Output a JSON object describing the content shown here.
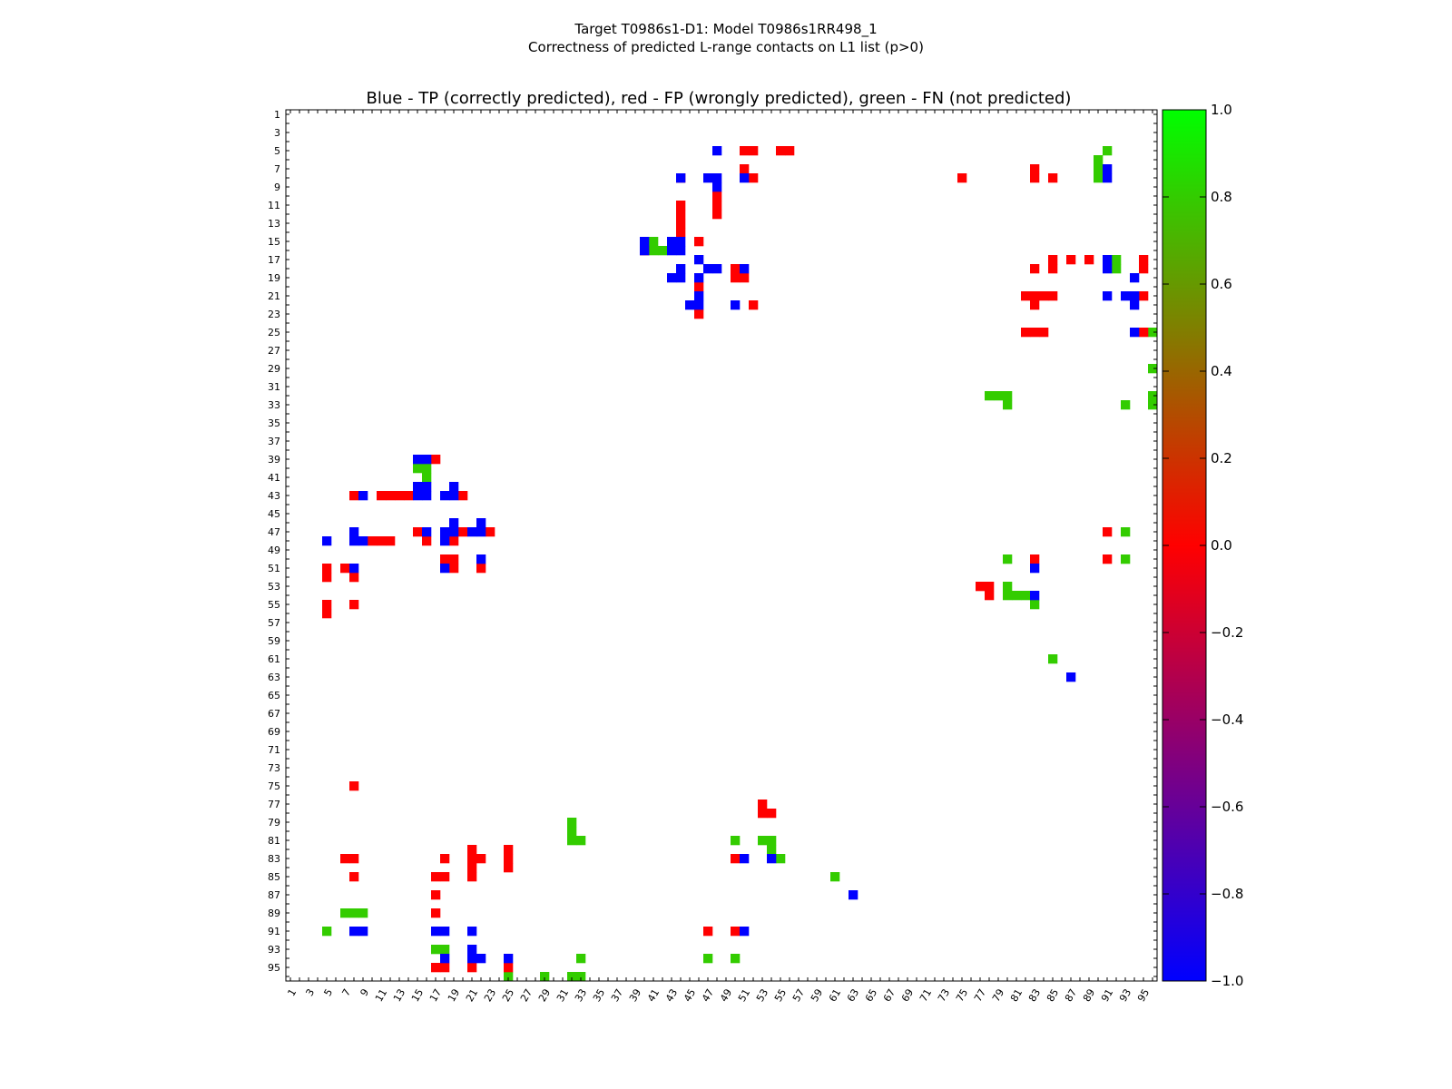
{
  "header": {
    "line1": "Target T0986s1-D1: Model T0986s1RR498_1",
    "line2": "Correctness of predicted L-range contacts on L1 list (p>0)"
  },
  "chart_data": {
    "type": "heatmap",
    "title": "Blue - TP (correctly predicted), red - FP (wrongly predicted), green - FN (not predicted)",
    "xlabel": "",
    "ylabel": "",
    "x_range": [
      1,
      96
    ],
    "y_range": [
      1,
      96
    ],
    "x_ticks": [
      "1",
      "3",
      "5",
      "7",
      "9",
      "11",
      "13",
      "15",
      "17",
      "19",
      "21",
      "23",
      "25",
      "27",
      "29",
      "31",
      "33",
      "35",
      "37",
      "39",
      "41",
      "43",
      "45",
      "47",
      "49",
      "51",
      "53",
      "55",
      "57",
      "59",
      "61",
      "63",
      "65",
      "67",
      "69",
      "71",
      "73",
      "75",
      "77",
      "79",
      "81",
      "83",
      "85",
      "87",
      "89",
      "91",
      "93",
      "95"
    ],
    "y_ticks": [
      "1",
      "3",
      "5",
      "7",
      "9",
      "11",
      "13",
      "15",
      "17",
      "19",
      "21",
      "23",
      "25",
      "27",
      "29",
      "31",
      "33",
      "35",
      "37",
      "39",
      "41",
      "43",
      "45",
      "47",
      "49",
      "51",
      "53",
      "55",
      "57",
      "59",
      "61",
      "63",
      "65",
      "67",
      "69",
      "71",
      "73",
      "75",
      "77",
      "79",
      "81",
      "83",
      "85",
      "87",
      "89",
      "91",
      "93",
      "95"
    ],
    "legend": {
      "TP": {
        "label": "TP (correctly predicted)",
        "color": "#0000ff"
      },
      "FP": {
        "label": "FP (wrongly predicted)",
        "color": "#ff0000"
      },
      "FN": {
        "label": "FN (not predicted)",
        "color": "#33cc00"
      }
    },
    "colorbar": {
      "range": [
        -1.0,
        1.0
      ],
      "ticks": [
        "1.0",
        "0.8",
        "0.6",
        "0.4",
        "0.2",
        "0.0",
        "−0.2",
        "−0.4",
        "−0.6",
        "−0.8",
        "−1.0"
      ],
      "colors": [
        "#0000ff",
        "#ff0000",
        "#00ff00"
      ]
    },
    "cells": {
      "TP": [
        [
          48,
          5
        ],
        [
          44,
          8
        ],
        [
          47,
          8
        ],
        [
          48,
          8
        ],
        [
          51,
          8
        ],
        [
          48,
          9
        ],
        [
          40,
          15
        ],
        [
          40,
          16
        ],
        [
          43,
          16
        ],
        [
          44,
          16
        ],
        [
          46,
          17
        ],
        [
          43,
          19
        ],
        [
          44,
          19
        ],
        [
          46,
          19
        ],
        [
          47,
          18
        ],
        [
          48,
          18
        ],
        [
          51,
          18
        ],
        [
          44,
          18
        ],
        [
          45,
          22
        ],
        [
          46,
          22
        ],
        [
          46,
          21
        ],
        [
          50,
          22
        ],
        [
          44,
          15
        ],
        [
          43,
          15
        ],
        [
          91,
          7
        ],
        [
          91,
          8
        ],
        [
          91,
          17
        ],
        [
          91,
          18
        ],
        [
          94,
          19
        ],
        [
          91,
          21
        ],
        [
          93,
          21
        ],
        [
          94,
          21
        ],
        [
          94,
          22
        ],
        [
          94,
          25
        ],
        [
          15,
          39
        ],
        [
          16,
          39
        ],
        [
          15,
          42
        ],
        [
          16,
          42
        ],
        [
          15,
          43
        ],
        [
          16,
          43
        ],
        [
          18,
          43
        ],
        [
          19,
          43
        ],
        [
          19,
          42
        ],
        [
          9,
          43
        ],
        [
          8,
          47
        ],
        [
          8,
          48
        ],
        [
          9,
          48
        ],
        [
          5,
          48
        ],
        [
          16,
          47
        ],
        [
          18,
          47
        ],
        [
          19,
          47
        ],
        [
          19,
          46
        ],
        [
          18,
          48
        ],
        [
          22,
          46
        ],
        [
          22,
          47
        ],
        [
          21,
          47
        ],
        [
          22,
          50
        ],
        [
          18,
          51
        ],
        [
          8,
          51
        ],
        [
          83,
          51
        ],
        [
          83,
          54
        ],
        [
          87,
          63
        ],
        [
          51,
          83
        ],
        [
          54,
          83
        ],
        [
          63,
          87
        ],
        [
          8,
          91
        ],
        [
          9,
          91
        ],
        [
          17,
          91
        ],
        [
          18,
          91
        ],
        [
          21,
          91
        ],
        [
          21,
          93
        ],
        [
          21,
          94
        ],
        [
          22,
          94
        ],
        [
          18,
          94
        ],
        [
          25,
          94
        ],
        [
          51,
          91
        ]
      ],
      "FP": [
        [
          51,
          5
        ],
        [
          52,
          5
        ],
        [
          55,
          5
        ],
        [
          56,
          5
        ],
        [
          44,
          8
        ],
        [
          51,
          7
        ],
        [
          52,
          8
        ],
        [
          48,
          10
        ],
        [
          48,
          11
        ],
        [
          48,
          12
        ],
        [
          44,
          11
        ],
        [
          44,
          12
        ],
        [
          44,
          13
        ],
        [
          44,
          14
        ],
        [
          46,
          15
        ],
        [
          40,
          16
        ],
        [
          50,
          18
        ],
        [
          50,
          19
        ],
        [
          51,
          19
        ],
        [
          46,
          20
        ],
        [
          52,
          22
        ],
        [
          46,
          23
        ],
        [
          75,
          8
        ],
        [
          83,
          7
        ],
        [
          83,
          8
        ],
        [
          85,
          8
        ],
        [
          83,
          18
        ],
        [
          85,
          17
        ],
        [
          85,
          18
        ],
        [
          87,
          17
        ],
        [
          89,
          17
        ],
        [
          95,
          17
        ],
        [
          95,
          18
        ],
        [
          82,
          21
        ],
        [
          83,
          21
        ],
        [
          84,
          21
        ],
        [
          85,
          21
        ],
        [
          83,
          22
        ],
        [
          95,
          21
        ],
        [
          82,
          25
        ],
        [
          83,
          25
        ],
        [
          84,
          25
        ],
        [
          95,
          25
        ],
        [
          17,
          39
        ],
        [
          8,
          43
        ],
        [
          11,
          43
        ],
        [
          12,
          43
        ],
        [
          13,
          43
        ],
        [
          14,
          43
        ],
        [
          20,
          43
        ],
        [
          15,
          47
        ],
        [
          16,
          48
        ],
        [
          10,
          48
        ],
        [
          11,
          48
        ],
        [
          12,
          48
        ],
        [
          20,
          47
        ],
        [
          23,
          47
        ],
        [
          19,
          48
        ],
        [
          18,
          50
        ],
        [
          19,
          50
        ],
        [
          19,
          51
        ],
        [
          22,
          51
        ],
        [
          5,
          51
        ],
        [
          5,
          52
        ],
        [
          7,
          51
        ],
        [
          8,
          52
        ],
        [
          5,
          55
        ],
        [
          5,
          56
        ],
        [
          8,
          55
        ],
        [
          91,
          47
        ],
        [
          83,
          50
        ],
        [
          91,
          50
        ],
        [
          77,
          53
        ],
        [
          78,
          53
        ],
        [
          78,
          54
        ],
        [
          8,
          75
        ],
        [
          53,
          77
        ],
        [
          53,
          78
        ],
        [
          54,
          78
        ],
        [
          7,
          83
        ],
        [
          8,
          83
        ],
        [
          18,
          83
        ],
        [
          21,
          82
        ],
        [
          21,
          83
        ],
        [
          22,
          83
        ],
        [
          21,
          84
        ],
        [
          21,
          85
        ],
        [
          25,
          82
        ],
        [
          25,
          83
        ],
        [
          25,
          84
        ],
        [
          8,
          85
        ],
        [
          17,
          85
        ],
        [
          18,
          85
        ],
        [
          17,
          87
        ],
        [
          17,
          89
        ],
        [
          47,
          91
        ],
        [
          50,
          91
        ],
        [
          50,
          83
        ],
        [
          17,
          95
        ],
        [
          18,
          95
        ],
        [
          21,
          95
        ],
        [
          25,
          95
        ]
      ],
      "FN": [
        [
          91,
          5
        ],
        [
          90,
          6
        ],
        [
          90,
          7
        ],
        [
          90,
          8
        ],
        [
          41,
          15
        ],
        [
          41,
          16
        ],
        [
          42,
          16
        ],
        [
          92,
          17
        ],
        [
          92,
          18
        ],
        [
          96,
          25
        ],
        [
          96,
          29
        ],
        [
          78,
          32
        ],
        [
          79,
          32
        ],
        [
          80,
          32
        ],
        [
          80,
          33
        ],
        [
          93,
          33
        ],
        [
          96,
          32
        ],
        [
          96,
          33
        ],
        [
          15,
          40
        ],
        [
          16,
          40
        ],
        [
          16,
          41
        ],
        [
          93,
          47
        ],
        [
          80,
          50
        ],
        [
          93,
          50
        ],
        [
          80,
          53
        ],
        [
          80,
          54
        ],
        [
          81,
          54
        ],
        [
          82,
          54
        ],
        [
          83,
          55
        ],
        [
          85,
          61
        ],
        [
          32,
          79
        ],
        [
          32,
          80
        ],
        [
          32,
          81
        ],
        [
          33,
          81
        ],
        [
          50,
          81
        ],
        [
          53,
          81
        ],
        [
          54,
          81
        ],
        [
          54,
          82
        ],
        [
          55,
          83
        ],
        [
          61,
          85
        ],
        [
          7,
          89
        ],
        [
          8,
          89
        ],
        [
          9,
          89
        ],
        [
          5,
          91
        ],
        [
          17,
          93
        ],
        [
          18,
          93
        ],
        [
          33,
          94
        ],
        [
          47,
          94
        ],
        [
          50,
          94
        ],
        [
          25,
          96
        ],
        [
          29,
          96
        ],
        [
          32,
          96
        ],
        [
          33,
          96
        ]
      ]
    }
  }
}
